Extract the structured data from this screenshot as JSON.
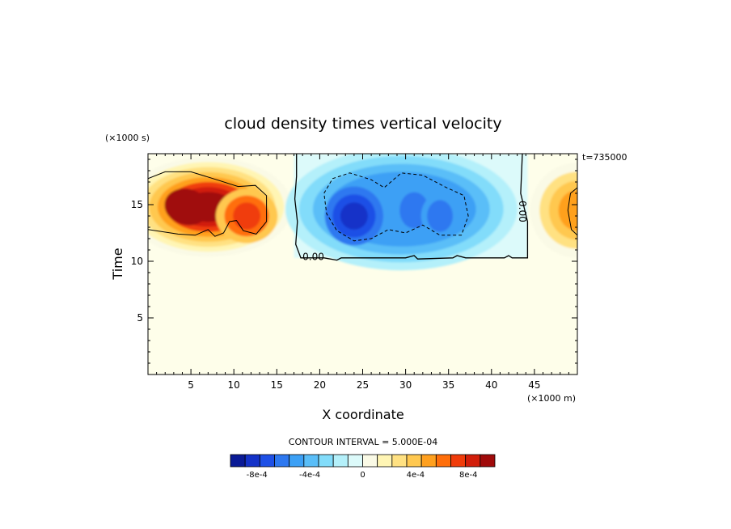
{
  "chart_data": {
    "type": "heatmap",
    "title": "cloud density times vertical velocity",
    "xlabel": "X coordinate",
    "ylabel": "Time",
    "x_units": "(×1000 m)",
    "y_units": "(×1000 s)",
    "time_stamp": "t=735000",
    "xlim": [
      0,
      50
    ],
    "ylim": [
      0,
      19.5
    ],
    "x_ticks": [
      {
        "value": 5,
        "label": "5"
      },
      {
        "value": 10,
        "label": "10"
      },
      {
        "value": 15,
        "label": "15"
      },
      {
        "value": 20,
        "label": "20"
      },
      {
        "value": 25,
        "label": "25"
      },
      {
        "value": 30,
        "label": "30"
      },
      {
        "value": 35,
        "label": "35"
      },
      {
        "value": 40,
        "label": "40"
      },
      {
        "value": 45,
        "label": "45"
      }
    ],
    "y_ticks": [
      {
        "value": 5,
        "label": "5"
      },
      {
        "value": 10,
        "label": "10"
      },
      {
        "value": 15,
        "label": "15"
      }
    ],
    "contour_interval_label": "CONTOUR INTERVAL = 5.000E-04",
    "contour_interval": 0.0005,
    "contour_labels": [
      "0.00",
      "0.00"
    ],
    "features": [
      {
        "kind": "positive",
        "x_center": 4.5,
        "y_center": 14.8,
        "peak": 0.0009
      },
      {
        "kind": "positive",
        "x_center": 11.5,
        "y_center": 14.0,
        "peak": 0.0006
      },
      {
        "kind": "negative",
        "x_center": 24,
        "y_center": 14.0,
        "peak": -0.00085
      },
      {
        "kind": "negative",
        "x_center": 31,
        "y_center": 14.5,
        "peak": -0.0007
      },
      {
        "kind": "negative",
        "x_center": 34,
        "y_center": 14.0,
        "peak": -0.0006
      },
      {
        "kind": "positive",
        "x_center": 49.5,
        "y_center": 14.5,
        "peak": 0.00065
      }
    ],
    "colorbar": {
      "min": -0.001,
      "max": 0.001,
      "colors": [
        "#0a1a96",
        "#1432c8",
        "#1e50e6",
        "#2d78f0",
        "#3ca0f5",
        "#5abef8",
        "#82dcfa",
        "#b4f0fa",
        "#dcfafa",
        "#fafae6",
        "#fff5b4",
        "#ffe182",
        "#ffc850",
        "#ffa01e",
        "#ff6e0a",
        "#f03c0a",
        "#d21e0a",
        "#a00a0a"
      ],
      "tick_labels": [
        {
          "value": -0.0008,
          "label": "-8e-4"
        },
        {
          "value": -0.0004,
          "label": "-4e-4"
        },
        {
          "value": 0,
          "label": "0"
        },
        {
          "value": 0.0004,
          "label": "4e-4"
        },
        {
          "value": 0.0008,
          "label": "8e-4"
        }
      ]
    }
  }
}
